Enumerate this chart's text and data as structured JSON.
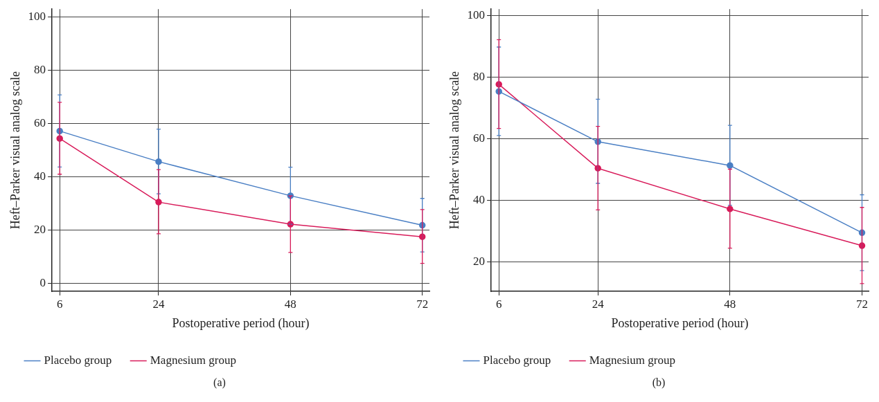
{
  "chart_data": [
    {
      "type": "line",
      "xlabel": "Postoperative period (hour)",
      "ylabel": "Heft–Parker visual analog scale",
      "x": [
        6,
        24,
        48,
        72
      ],
      "xlim": [
        4.6,
        73.3
      ],
      "xticks": [
        6,
        24,
        48,
        72
      ],
      "ylim": [
        -3,
        103
      ],
      "yticks": [
        0,
        20,
        40,
        60,
        80,
        100
      ],
      "grid": true,
      "legend": "bottom left",
      "marker": "circle",
      "line_style": "solid",
      "annotations": [
        "(a)"
      ],
      "series": [
        {
          "name": "Placebo group",
          "color": "#4a7fc4",
          "values": [
            57.2,
            45.7,
            32.9,
            21.8
          ],
          "errors": [
            [
              43.7,
              70.8
            ],
            [
              33.6,
              57.9
            ],
            [
              22.2,
              43.6
            ],
            [
              11.8,
              31.9
            ]
          ]
        },
        {
          "name": "Magnesium group",
          "color": "#d81b5a",
          "values": [
            54.4,
            30.5,
            22.2,
            17.5
          ],
          "errors": [
            [
              41.0,
              68.0
            ],
            [
              18.6,
              42.7
            ],
            [
              11.6,
              32.8
            ],
            [
              7.5,
              27.7
            ]
          ]
        }
      ]
    },
    {
      "type": "line",
      "xlabel": "Postoperative period (hour)",
      "ylabel": "Heft–Parker visual analog scale",
      "x": [
        6,
        24,
        48,
        72
      ],
      "xlim": [
        4.6,
        73.2
      ],
      "xticks": [
        6,
        24,
        48,
        72
      ],
      "ylim": [
        10.5,
        102
      ],
      "yticks": [
        20,
        40,
        60,
        80,
        100
      ],
      "grid": true,
      "legend": "bottom left",
      "marker": "circle",
      "line_style": "solid",
      "annotations": [
        "(b)"
      ],
      "series": [
        {
          "name": "Placebo group",
          "color": "#4a7fc4",
          "values": [
            75.3,
            59.0,
            51.3,
            29.5
          ],
          "errors": [
            [
              61.0,
              89.7
            ],
            [
              45.5,
              72.8
            ],
            [
              38.4,
              64.3
            ],
            [
              17.2,
              41.8
            ]
          ]
        },
        {
          "name": "Magnesium group",
          "color": "#d81b5a",
          "values": [
            77.6,
            50.4,
            37.2,
            25.3
          ],
          "errors": [
            [
              63.3,
              92.1
            ],
            [
              36.9,
              64.0
            ],
            [
              24.5,
              50.1
            ],
            [
              13.0,
              37.7
            ]
          ]
        }
      ]
    }
  ]
}
